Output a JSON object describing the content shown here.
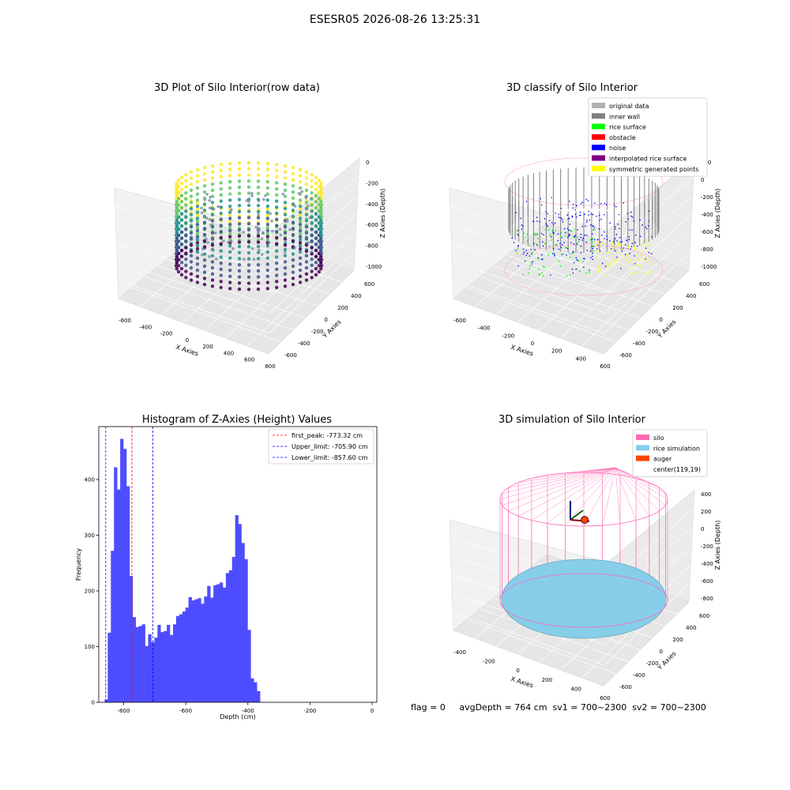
{
  "suptitle": "ESESR05 2026-08-26 13:25:31",
  "footer": "flag = 0     avgDepth = 764 cm  sv1 = 700~2300  sv2 = 700~2300",
  "colors": {
    "original": "#b0b0b0",
    "inner_wall": "#808080",
    "rice_surface": "#00ff00",
    "obstacle": "#ff0000",
    "noise": "#0000ff",
    "interpolated": "#800080",
    "symmetric": "#ffff00",
    "silo": "#ff69b4",
    "rice_sim": "#87ceeb",
    "auger": "#ff4500",
    "hist_bar": "#4d4dff"
  },
  "chart_data": [
    {
      "type": "scatter",
      "title": "3D Plot of Silo Interior(row data)",
      "xlabel": "X Axies",
      "ylabel": "Y Axies",
      "zlabel": "Z Axies (Depth)",
      "xticks": [
        "-600",
        "-400",
        "-200",
        "0",
        "200",
        "400",
        "600",
        "800"
      ],
      "yticks": [
        "-600",
        "-400",
        "-200",
        "0",
        "200",
        "400",
        "600"
      ],
      "zticks": [
        "0",
        "-200",
        "-400",
        "-600",
        "-800",
        "-1000"
      ],
      "colormap": "viridis"
    },
    {
      "type": "scatter",
      "title": "3D classify of Silo Interior",
      "xlabel": "X Axies",
      "ylabel": "Y Axies",
      "zlabel": "Z Axies (Depth)",
      "xticks": [
        "-600",
        "-400",
        "-200",
        "0",
        "200",
        "400",
        "600"
      ],
      "yticks": [
        "-600",
        "-400",
        "-200",
        "0",
        "200",
        "400",
        "600"
      ],
      "zticks": [
        "200",
        "0",
        "-200",
        "-400",
        "-600",
        "-800",
        "-1000"
      ],
      "legend": [
        "original data",
        "inner wall",
        "rice surface",
        "obstacle",
        "noise",
        "interpolated rice surface",
        "symmetric generated points"
      ],
      "legend_placement": "top-right"
    },
    {
      "type": "bar",
      "title": "Histogram of Z-Axies (Height) Values",
      "xlabel": "Depth (cm)",
      "ylabel": "Frequency",
      "xlim": [
        -880,
        15
      ],
      "ylim": [
        0,
        495
      ],
      "xticks": [
        -800,
        -600,
        -400,
        -200,
        0
      ],
      "yticks": [
        0,
        100,
        200,
        300,
        400
      ],
      "bin_start": -861,
      "bin_width": 10,
      "values": [
        5,
        125,
        272,
        422,
        382,
        473,
        455,
        388,
        227,
        153,
        135,
        137,
        140,
        101,
        122,
        108,
        116,
        139,
        126,
        128,
        139,
        121,
        140,
        155,
        158,
        163,
        170,
        189,
        183,
        185,
        187,
        177,
        190,
        209,
        188,
        210,
        212,
        215,
        206,
        232,
        237,
        261,
        336,
        320,
        286,
        257,
        130,
        43,
        36,
        20
      ],
      "vlines": [
        {
          "label": "first_peak: -773.32 cm",
          "x": -773.32,
          "color": "#ff0000"
        },
        {
          "label": "Upper_limit: -705.90 cm",
          "x": -705.9,
          "color": "#0000ff"
        },
        {
          "label": "Lower_limit: -857.60 cm",
          "x": -857.6,
          "color": "#0000ff"
        }
      ],
      "legend_placement": "top-right"
    },
    {
      "type": "scatter",
      "title": "3D simulation of Silo Interior",
      "xlabel": "X Axies",
      "ylabel": "Y Axies",
      "zlabel": "Z Axies (Depth)",
      "xticks": [
        "-400",
        "-200",
        "0",
        "200",
        "400",
        "600"
      ],
      "yticks": [
        "-600",
        "-400",
        "-200",
        "0",
        "200",
        "400",
        "600"
      ],
      "zticks": [
        "400",
        "200",
        "0",
        "-200",
        "-400",
        "-600",
        "-800"
      ],
      "legend": [
        "silo",
        "rice simulation",
        "auger",
        "center(119,19)"
      ],
      "legend_placement": "top-right"
    }
  ]
}
